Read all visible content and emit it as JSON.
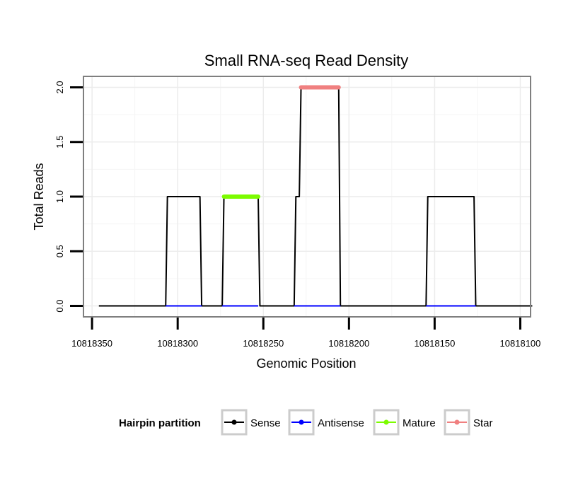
{
  "chart_data": {
    "type": "line",
    "title": "Small RNA-seq Read Density",
    "xlabel": "Genomic Position",
    "ylabel": "Total Reads",
    "x_reversed": true,
    "xlim": [
      10818355,
      10818094
    ],
    "ylim": [
      -0.1,
      2.1
    ],
    "x_ticks": [
      10818350,
      10818300,
      10818250,
      10818200,
      10818150,
      10818100
    ],
    "x_tick_labels": [
      "10818350",
      "10818300",
      "10818250",
      "10818200",
      "10818150",
      "10818100"
    ],
    "y_ticks": [
      0.0,
      0.5,
      1.0,
      1.5,
      2.0
    ],
    "y_tick_labels": [
      "0.0",
      "0.5",
      "1.0",
      "1.5",
      "2.0"
    ],
    "grid": true,
    "series": [
      {
        "name": "Sense",
        "color": "#000000",
        "x": [
          10818346,
          10818307,
          10818306,
          10818287,
          10818286,
          10818274,
          10818273,
          10818253,
          10818252,
          10818232,
          10818231,
          10818229,
          10818228,
          10818206,
          10818205,
          10818155,
          10818154,
          10818127,
          10818126,
          10818093
        ],
        "y": [
          0,
          0,
          1,
          1,
          0,
          0,
          1,
          1,
          0,
          0,
          1,
          1,
          2,
          2,
          0,
          0,
          1,
          1,
          0,
          0
        ]
      },
      {
        "name": "Antisense",
        "color": "#0000ff",
        "x": [
          10818307,
          10818286,
          10818274,
          10818253,
          10818232,
          10818205,
          10818155,
          10818126
        ],
        "y": [
          0,
          0,
          0,
          0,
          0,
          0,
          0,
          0
        ]
      },
      {
        "name": "Mature",
        "color": "#7cfc00",
        "x": [
          10818273,
          10818253
        ],
        "y": [
          1,
          1
        ]
      },
      {
        "name": "Star",
        "color": "#f08080",
        "x": [
          10818228,
          10818206
        ],
        "y": [
          2,
          2
        ]
      }
    ],
    "legend": {
      "title": "Hairpin partition",
      "position": "bottom",
      "entries": [
        {
          "label": "Sense",
          "color": "#000000"
        },
        {
          "label": "Antisense",
          "color": "#0000ff"
        },
        {
          "label": "Mature",
          "color": "#7cfc00"
        },
        {
          "label": "Star",
          "color": "#f08080"
        }
      ]
    }
  }
}
